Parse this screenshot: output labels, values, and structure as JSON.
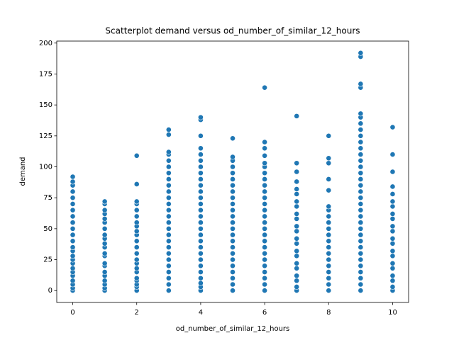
{
  "chart_data": {
    "type": "scatter",
    "title": "Scatterplot demand versus od_number_of_similar_12_hours",
    "x_label": "od_number_of_similar_12_hours",
    "y_label": "demand",
    "color": "#1f77b4",
    "xlim": [
      -0.5,
      10.5
    ],
    "ylim": [
      -9.6,
      201.6
    ],
    "xticks": [
      0,
      2,
      4,
      6,
      8,
      10
    ],
    "yticks": [
      0,
      25,
      50,
      75,
      100,
      125,
      150,
      175,
      200
    ],
    "x": [
      0,
      0,
      0,
      0,
      0,
      0,
      0,
      0,
      0,
      0,
      0,
      0,
      0,
      0,
      0,
      0,
      0,
      0,
      0,
      0,
      0,
      0,
      0,
      0,
      1,
      1,
      1,
      1,
      1,
      1,
      1,
      1,
      1,
      1,
      1,
      1,
      1,
      1,
      1,
      1,
      1,
      1,
      1,
      1,
      1,
      2,
      2,
      2,
      2,
      2,
      2,
      2,
      2,
      2,
      2,
      2,
      2,
      2,
      2,
      2,
      2,
      2,
      2,
      2,
      2,
      2,
      2,
      3,
      3,
      3,
      3,
      3,
      3,
      3,
      3,
      3,
      3,
      3,
      3,
      3,
      3,
      3,
      3,
      3,
      3,
      3,
      3,
      3,
      3,
      3,
      3,
      3,
      3,
      4,
      4,
      4,
      4,
      4,
      4,
      4,
      4,
      4,
      4,
      4,
      4,
      4,
      4,
      4,
      4,
      4,
      4,
      4,
      4,
      4,
      4,
      4,
      4,
      4,
      4,
      4,
      4,
      5,
      5,
      5,
      5,
      5,
      5,
      5,
      5,
      5,
      5,
      5,
      5,
      5,
      5,
      5,
      5,
      5,
      5,
      5,
      5,
      5,
      5,
      5,
      5,
      6,
      6,
      6,
      6,
      6,
      6,
      6,
      6,
      6,
      6,
      6,
      6,
      6,
      6,
      6,
      6,
      6,
      6,
      6,
      6,
      6,
      6,
      6,
      6,
      6,
      6,
      7,
      7,
      7,
      7,
      7,
      7,
      7,
      7,
      7,
      7,
      7,
      7,
      7,
      7,
      7,
      7,
      7,
      7,
      7,
      7,
      7,
      7,
      8,
      8,
      8,
      8,
      8,
      8,
      8,
      8,
      8,
      8,
      8,
      8,
      8,
      8,
      8,
      8,
      8,
      8,
      8,
      8,
      9,
      9,
      9,
      9,
      9,
      9,
      9,
      9,
      9,
      9,
      9,
      9,
      9,
      9,
      9,
      9,
      9,
      9,
      9,
      9,
      9,
      9,
      9,
      9,
      9,
      9,
      9,
      9,
      9,
      9,
      9,
      9,
      9,
      9,
      10,
      10,
      10,
      10,
      10,
      10,
      10,
      10,
      10,
      10,
      10,
      10,
      10,
      10,
      10,
      10,
      10,
      10,
      10,
      10,
      10
    ],
    "values": [
      0,
      2,
      5,
      8,
      12,
      15,
      18,
      22,
      25,
      28,
      32,
      35,
      40,
      45,
      50,
      55,
      60,
      65,
      70,
      75,
      80,
      85,
      88,
      92,
      0,
      2,
      5,
      8,
      12,
      15,
      20,
      22,
      28,
      30,
      35,
      38,
      42,
      45,
      50,
      55,
      58,
      62,
      65,
      70,
      72,
      0,
      3,
      5,
      8,
      10,
      15,
      18,
      22,
      25,
      30,
      35,
      40,
      45,
      48,
      52,
      55,
      60,
      65,
      70,
      72,
      86,
      109,
      0,
      5,
      10,
      15,
      20,
      25,
      30,
      35,
      40,
      45,
      50,
      55,
      60,
      65,
      70,
      75,
      80,
      85,
      90,
      95,
      100,
      105,
      110,
      112,
      126,
      130,
      0,
      3,
      6,
      10,
      15,
      20,
      25,
      30,
      35,
      40,
      45,
      50,
      55,
      60,
      65,
      70,
      75,
      80,
      85,
      90,
      95,
      100,
      105,
      110,
      115,
      125,
      138,
      140,
      0,
      5,
      10,
      15,
      20,
      25,
      30,
      35,
      40,
      45,
      50,
      55,
      60,
      65,
      70,
      75,
      80,
      85,
      90,
      95,
      100,
      105,
      108,
      123,
      0,
      5,
      10,
      15,
      20,
      25,
      30,
      35,
      40,
      45,
      50,
      55,
      60,
      65,
      70,
      75,
      80,
      85,
      90,
      95,
      100,
      103,
      109,
      115,
      120,
      164,
      0,
      3,
      8,
      12,
      18,
      22,
      28,
      32,
      38,
      42,
      48,
      52,
      58,
      62,
      68,
      72,
      78,
      82,
      88,
      96,
      103,
      141,
      0,
      5,
      10,
      15,
      20,
      25,
      30,
      35,
      40,
      45,
      50,
      55,
      60,
      65,
      68,
      81,
      90,
      103,
      107,
      125,
      0,
      5,
      10,
      15,
      20,
      25,
      30,
      35,
      40,
      45,
      50,
      55,
      60,
      65,
      70,
      75,
      80,
      85,
      90,
      95,
      100,
      105,
      110,
      115,
      120,
      125,
      130,
      135,
      140,
      143,
      164,
      167,
      189,
      192,
      0,
      3,
      8,
      12,
      18,
      22,
      28,
      32,
      38,
      42,
      48,
      52,
      58,
      62,
      68,
      72,
      78,
      84,
      96,
      110,
      132
    ]
  }
}
